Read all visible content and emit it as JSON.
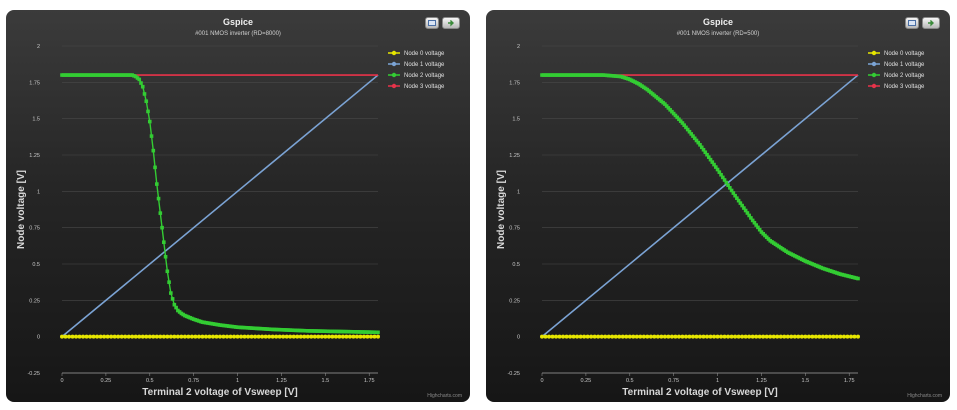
{
  "chart_data": [
    {
      "type": "line",
      "title": "Gspice",
      "subtitle": "#001 NMOS inverter (RD=8000)",
      "xlabel": "Terminal 2 voltage of Vsweep [V]",
      "ylabel": "Node voltage [V]",
      "xlim": [
        0,
        1.8
      ],
      "ylim": [
        -0.25,
        2
      ],
      "xticks": [
        "0",
        "0.25",
        "0.5",
        "0.75",
        "1",
        "1.25",
        "1.5",
        "1.75"
      ],
      "yticks": [
        "-0.25",
        "0",
        "0.25",
        "0.5",
        "0.75",
        "1",
        "1.25",
        "1.5",
        "1.75",
        "2"
      ],
      "grid": true,
      "legend_position": "top-right",
      "credits": "Highcharts.com",
      "series": [
        {
          "name": "Node 0 voltage",
          "color": "#e6e600",
          "marker": "circle",
          "x": [
            0,
            1.8
          ],
          "y": [
            0,
            0
          ]
        },
        {
          "name": "Node 1 voltage",
          "color": "#7ba3d4",
          "marker": "none",
          "x": [
            0,
            1.8
          ],
          "y": [
            0,
            1.8
          ]
        },
        {
          "name": "Node 2 voltage",
          "color": "#33cc33",
          "marker": "square",
          "x": [
            0,
            0.3,
            0.4,
            0.42,
            0.44,
            0.46,
            0.48,
            0.5,
            0.52,
            0.54,
            0.56,
            0.58,
            0.6,
            0.62,
            0.64,
            0.66,
            0.68,
            0.7,
            0.75,
            0.8,
            0.9,
            1.0,
            1.2,
            1.4,
            1.6,
            1.8
          ],
          "y": [
            1.8,
            1.8,
            1.8,
            1.79,
            1.77,
            1.72,
            1.62,
            1.48,
            1.28,
            1.05,
            0.85,
            0.65,
            0.45,
            0.3,
            0.22,
            0.18,
            0.16,
            0.145,
            0.12,
            0.1,
            0.08,
            0.065,
            0.05,
            0.04,
            0.035,
            0.03
          ]
        },
        {
          "name": "Node 3 voltage",
          "color": "#e8334a",
          "marker": "none",
          "x": [
            0,
            1.8
          ],
          "y": [
            1.8,
            1.8
          ]
        }
      ]
    },
    {
      "type": "line",
      "title": "Gspice",
      "subtitle": "#001 NMOS inverter (RD=500)",
      "xlabel": "Terminal 2 voltage of Vsweep [V]",
      "ylabel": "Node voltage [V]",
      "xlim": [
        0,
        1.8
      ],
      "ylim": [
        -0.25,
        2
      ],
      "xticks": [
        "0",
        "0.25",
        "0.5",
        "0.75",
        "1",
        "1.25",
        "1.5",
        "1.75"
      ],
      "yticks": [
        "-0.25",
        "0",
        "0.25",
        "0.5",
        "0.75",
        "1",
        "1.25",
        "1.5",
        "1.75",
        "2"
      ],
      "grid": true,
      "legend_position": "top-right",
      "credits": "Highcharts.com",
      "series": [
        {
          "name": "Node 0 voltage",
          "color": "#e6e600",
          "marker": "circle",
          "x": [
            0,
            1.8
          ],
          "y": [
            0,
            0
          ]
        },
        {
          "name": "Node 1 voltage",
          "color": "#7ba3d4",
          "marker": "none",
          "x": [
            0,
            1.8
          ],
          "y": [
            0,
            1.8
          ]
        },
        {
          "name": "Node 2 voltage",
          "color": "#33cc33",
          "marker": "square",
          "x": [
            0,
            0.35,
            0.45,
            0.5,
            0.55,
            0.6,
            0.7,
            0.8,
            0.9,
            1.0,
            1.1,
            1.2,
            1.25,
            1.3,
            1.4,
            1.5,
            1.6,
            1.7,
            1.8
          ],
          "y": [
            1.8,
            1.8,
            1.79,
            1.77,
            1.74,
            1.7,
            1.6,
            1.47,
            1.32,
            1.15,
            0.97,
            0.8,
            0.72,
            0.66,
            0.58,
            0.52,
            0.47,
            0.43,
            0.4
          ]
        },
        {
          "name": "Node 3 voltage",
          "color": "#e8334a",
          "marker": "none",
          "x": [
            0,
            1.8
          ],
          "y": [
            1.8,
            1.8
          ]
        }
      ]
    }
  ]
}
